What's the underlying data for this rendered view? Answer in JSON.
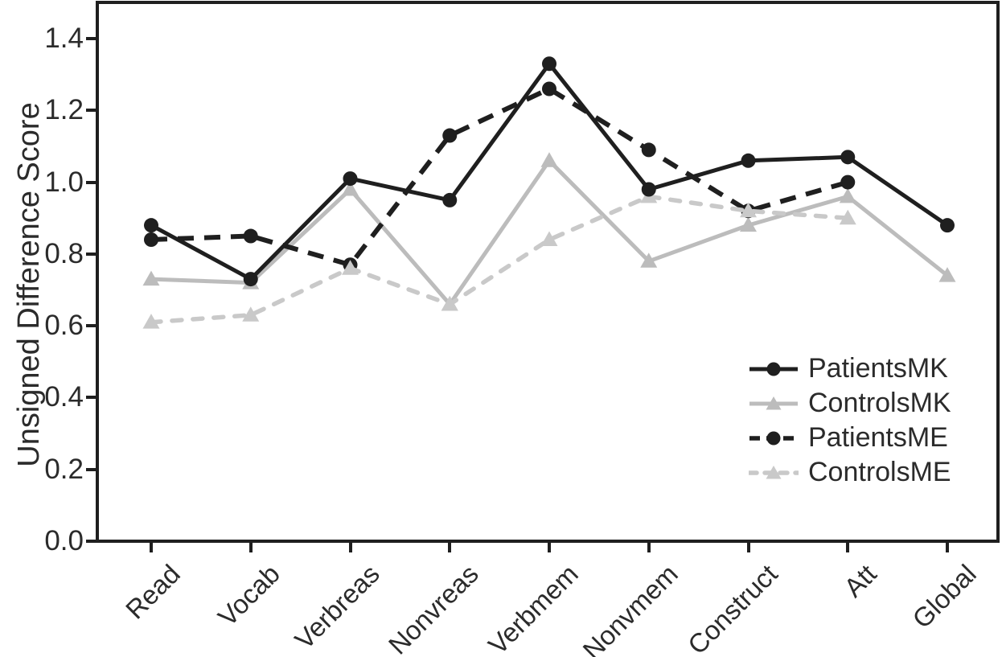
{
  "figure": {
    "kind": "line-chart",
    "background_color": "#ffffff",
    "frame_color": "#1f1f1f"
  },
  "axes": {
    "y": {
      "label": "Unsigned Difference Score",
      "ticks": [
        "0.0",
        "0.2",
        "0.4",
        "0.6",
        "0.8",
        "1.0",
        "1.2",
        "1.4"
      ],
      "min": 0.0,
      "max": 1.4
    },
    "x": {
      "categories": [
        "Read",
        "Vocab",
        "Verbreas",
        "Nonvreas",
        "Verbmem",
        "Nonvmem",
        "Construct",
        "Att",
        "Global"
      ]
    }
  },
  "chart_data": {
    "type": "line",
    "title": "",
    "xlabel": "",
    "ylabel": "Unsigned Difference Score",
    "ylim": [
      0.0,
      1.4
    ],
    "grid": false,
    "legend_position": "inside-right-middle",
    "categories": [
      "Read",
      "Vocab",
      "Verbreas",
      "Nonvreas",
      "Verbmem",
      "Nonvmem",
      "Construct",
      "Att",
      "Global"
    ],
    "series": [
      {
        "name": "PatientsMK",
        "color": "#1f1f1f",
        "line_style": "solid",
        "marker": "circle",
        "values": [
          0.88,
          0.73,
          1.01,
          0.95,
          1.33,
          0.98,
          1.06,
          1.07,
          0.88
        ]
      },
      {
        "name": "ControlsMK",
        "color": "#bcbcbc",
        "line_style": "solid",
        "marker": "triangle",
        "values": [
          0.73,
          0.72,
          0.98,
          0.66,
          1.06,
          0.78,
          0.88,
          0.96,
          0.74
        ]
      },
      {
        "name": "PatientsME",
        "color": "#1f1f1f",
        "line_style": "dashed",
        "marker": "circle",
        "values": [
          0.84,
          0.85,
          0.77,
          1.13,
          1.26,
          1.09,
          0.92,
          1.0,
          null
        ]
      },
      {
        "name": "ControlsME",
        "color": "#c9c9c9",
        "line_style": "dashed",
        "marker": "triangle",
        "values": [
          0.61,
          0.63,
          0.76,
          0.66,
          0.84,
          0.96,
          0.92,
          0.9,
          null
        ]
      }
    ]
  },
  "legend": {
    "items": [
      {
        "label": "PatientsMK"
      },
      {
        "label": "ControlsMK"
      },
      {
        "label": "PatientsME"
      },
      {
        "label": "ControlsME"
      }
    ]
  }
}
